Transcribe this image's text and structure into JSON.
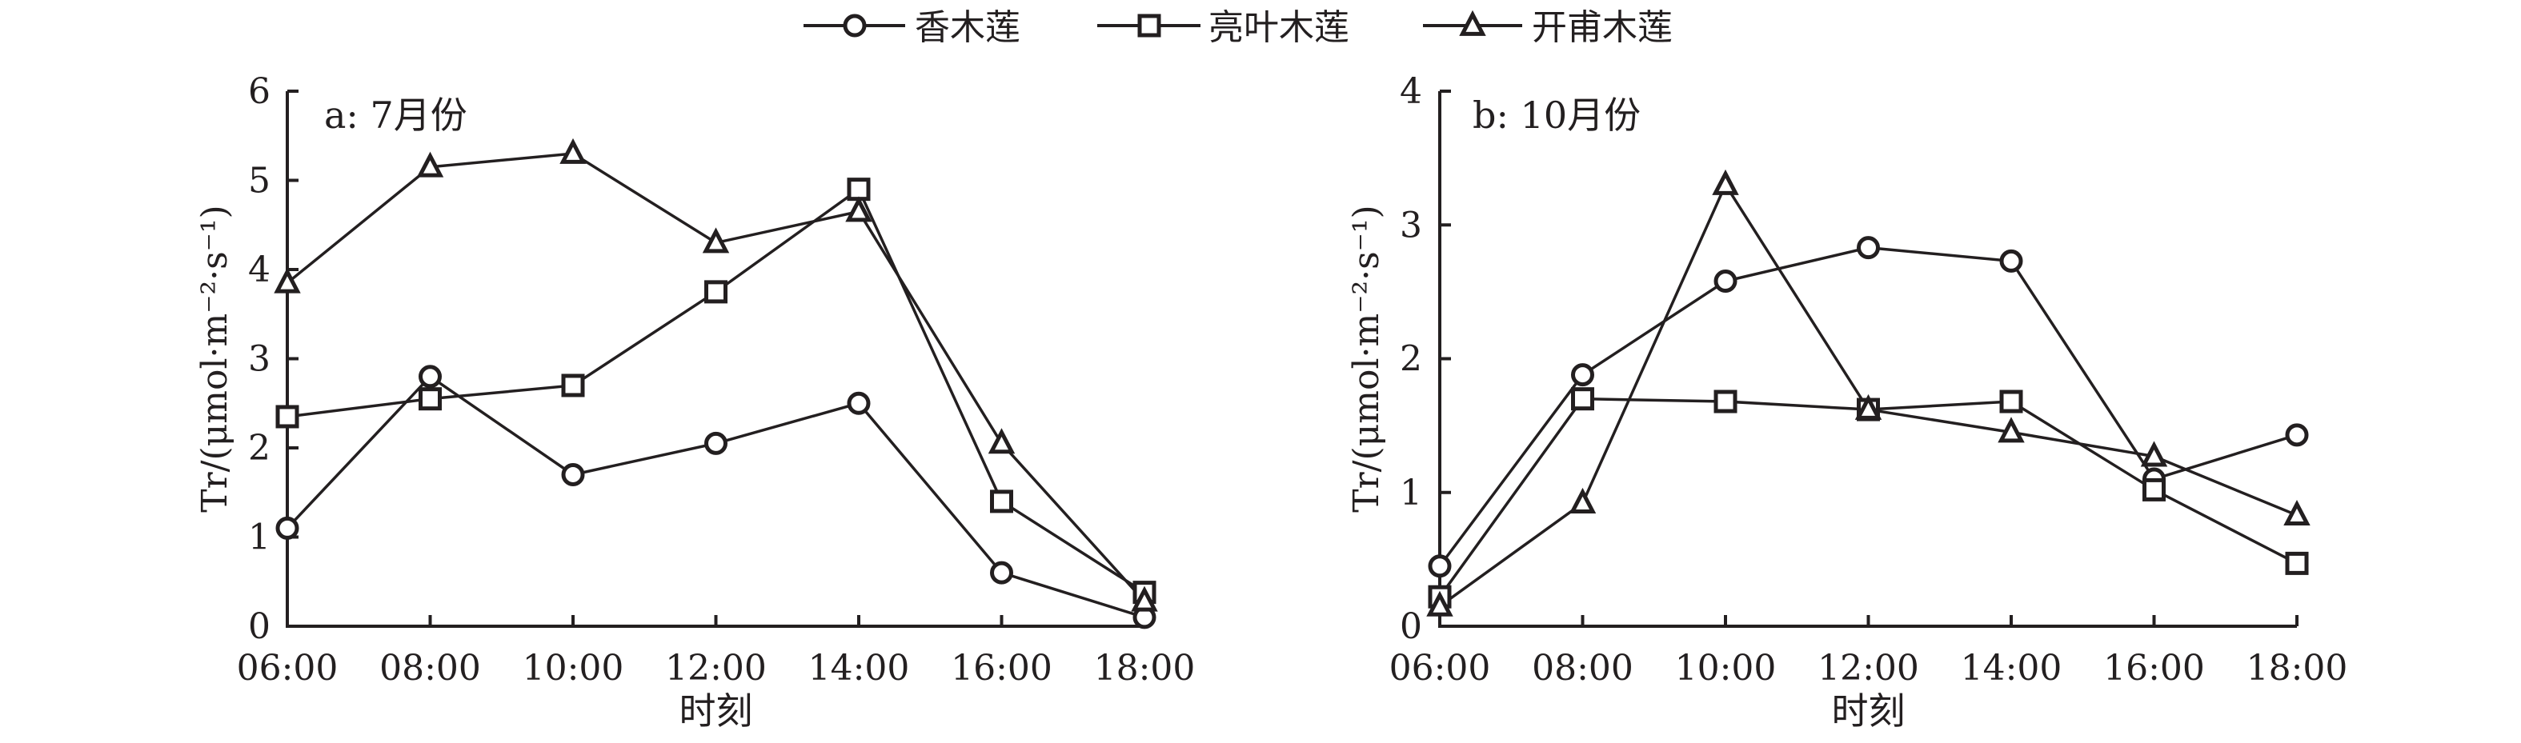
{
  "legend": [
    {
      "label": "香木莲",
      "marker": "circle"
    },
    {
      "label": "亮叶木莲",
      "marker": "square"
    },
    {
      "label": "开甫木莲",
      "marker": "triangle"
    }
  ],
  "colors": {
    "ink": "#231f20",
    "background": "#ffffff"
  },
  "chart_data": [
    {
      "type": "line",
      "panel_label": "a: 7月份",
      "xlabel": "时刻",
      "ylabel": "Tr/(μmol·m⁻²·s⁻¹)",
      "categories": [
        "06:00",
        "08:00",
        "10:00",
        "12:00",
        "14:00",
        "16:00",
        "18:00"
      ],
      "ylim": [
        0,
        6
      ],
      "yticks": [
        0,
        1,
        2,
        3,
        4,
        5,
        6
      ],
      "grid": false,
      "legend_position": "top-center",
      "series": [
        {
          "name": "香木莲",
          "marker": "circle",
          "values": [
            1.1,
            2.8,
            1.7,
            2.05,
            2.5,
            0.6,
            0.1
          ]
        },
        {
          "name": "亮叶木莲",
          "marker": "square",
          "values": [
            2.35,
            2.55,
            2.7,
            3.75,
            4.9,
            1.4,
            0.38
          ]
        },
        {
          "name": "开甫木莲",
          "marker": "triangle",
          "values": [
            3.85,
            5.15,
            5.3,
            4.3,
            4.65,
            2.05,
            0.28
          ]
        }
      ]
    },
    {
      "type": "line",
      "panel_label": "b: 10月份",
      "xlabel": "时刻",
      "ylabel": "Tr/(μmol·m⁻²·s⁻¹)",
      "categories": [
        "06:00",
        "08:00",
        "10:00",
        "12:00",
        "14:00",
        "16:00",
        "18:00"
      ],
      "ylim": [
        0,
        4
      ],
      "yticks": [
        0,
        1,
        2,
        3,
        4
      ],
      "grid": false,
      "legend_position": "top-center",
      "series": [
        {
          "name": "香木莲",
          "marker": "circle",
          "values": [
            0.45,
            1.88,
            2.58,
            2.83,
            2.73,
            1.1,
            1.43
          ]
        },
        {
          "name": "亮叶木莲",
          "marker": "square",
          "values": [
            0.22,
            1.7,
            1.68,
            1.62,
            1.68,
            1.02,
            0.47
          ]
        },
        {
          "name": "开甫木莲",
          "marker": "triangle",
          "values": [
            0.15,
            0.92,
            3.3,
            1.62,
            1.45,
            1.27,
            0.83
          ]
        }
      ]
    }
  ]
}
